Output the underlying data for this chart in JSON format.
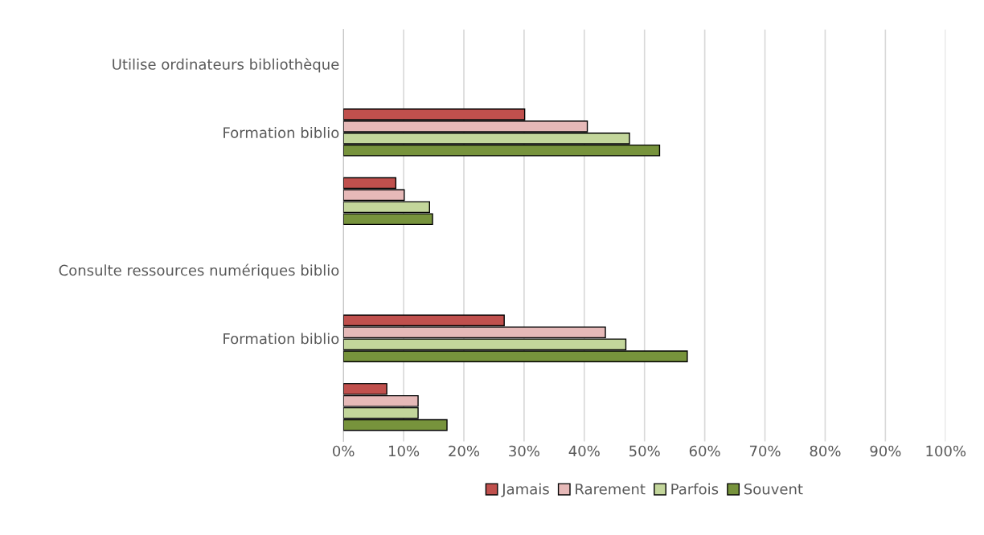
{
  "chart_data": {
    "type": "bar",
    "orientation": "horizontal",
    "categories": [
      "Utilise ordinateurs bibliothèque",
      "Formation biblio",
      null,
      "Consulte ressources numériques biblio",
      "Formation biblio",
      null
    ],
    "series": [
      {
        "name": "Jamais",
        "color": "#c0504d",
        "values": [
          null,
          30.1,
          8.7,
          null,
          26.7,
          7.2
        ]
      },
      {
        "name": "Rarement",
        "color": "#e6b9b8",
        "values": [
          null,
          40.5,
          10.1,
          null,
          43.5,
          12.4
        ]
      },
      {
        "name": "Parfois",
        "color": "#c3d69b",
        "values": [
          null,
          47.5,
          14.3,
          null,
          46.9,
          12.4
        ]
      },
      {
        "name": "Souvent",
        "color": "#77933c",
        "values": [
          null,
          52.5,
          14.8,
          null,
          57.1,
          17.2
        ]
      }
    ],
    "xlim": [
      0,
      100
    ],
    "xticks": [
      {
        "value": 0,
        "label": "0%"
      },
      {
        "value": 10,
        "label": "10%"
      },
      {
        "value": 20,
        "label": "20%"
      },
      {
        "value": 30,
        "label": "30%"
      },
      {
        "value": 40,
        "label": "40%"
      },
      {
        "value": 50,
        "label": "50%"
      },
      {
        "value": 60,
        "label": "60%"
      },
      {
        "value": 70,
        "label": "70%"
      },
      {
        "value": 80,
        "label": "80%"
      },
      {
        "value": 90,
        "label": "90%"
      },
      {
        "value": 100,
        "label": "100%"
      }
    ],
    "grid": "x",
    "legend": "bottom"
  }
}
